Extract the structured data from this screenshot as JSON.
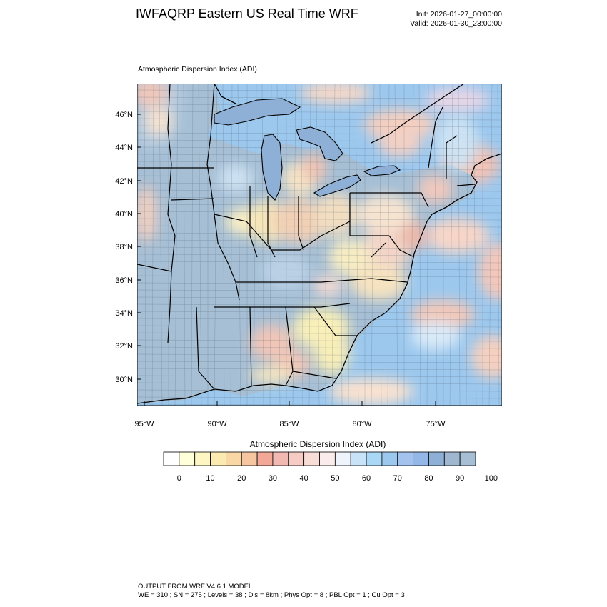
{
  "header": {
    "title": "IWFAQRP Eastern US Real Time WRF",
    "init": "Init: 2026-01-27_00:00:00",
    "valid": "Valid: 2026-01-30_23:00:00"
  },
  "map": {
    "title": "Atmospheric Dispersion Index   (ADI)",
    "lat_labels": [
      "46°N",
      "44°N",
      "42°N",
      "40°N",
      "38°N",
      "36°N",
      "34°N",
      "32°N",
      "30°N"
    ],
    "lon_labels": [
      "95°W",
      "90°W",
      "85°W",
      "80°W",
      "75°W"
    ],
    "field_bands": [
      {
        "name": "low",
        "color": "#fbeaa8"
      },
      {
        "name": "mid",
        "color": "#f5b8a8"
      },
      {
        "name": "high",
        "color": "#9fb8d6"
      },
      {
        "name": "ocean",
        "color": "#9cc8ee"
      }
    ]
  },
  "colorbar": {
    "title": "Atmospheric Dispersion Index  (ADI)",
    "tick_labels": [
      "0",
      "10",
      "20",
      "30",
      "40",
      "50",
      "60",
      "70",
      "80",
      "90",
      "100"
    ],
    "colors": [
      "#ffffff",
      "#ffffd9",
      "#fdf5c2",
      "#fcebb0",
      "#fad8a6",
      "#f6c6a0",
      "#f2a797",
      "#f2b9b3",
      "#f5cbc4",
      "#f8dcd6",
      "#faeceb",
      "#eef3fc",
      "#c8e3f8",
      "#a8d8f6",
      "#9cc8ee",
      "#a3c3ee",
      "#93b7e6",
      "#8fb0d6",
      "#9fb8d0",
      "#a6bfd5"
    ]
  },
  "footer": {
    "line1": "OUTPUT FROM WRF V4.6.1 MODEL",
    "line2": "WE = 310 ; SN = 275 ; Levels = 38 ; Dis = 8km ; Phys Opt = 8 ; PBL Opt = 1 ; Cu Opt = 3"
  }
}
